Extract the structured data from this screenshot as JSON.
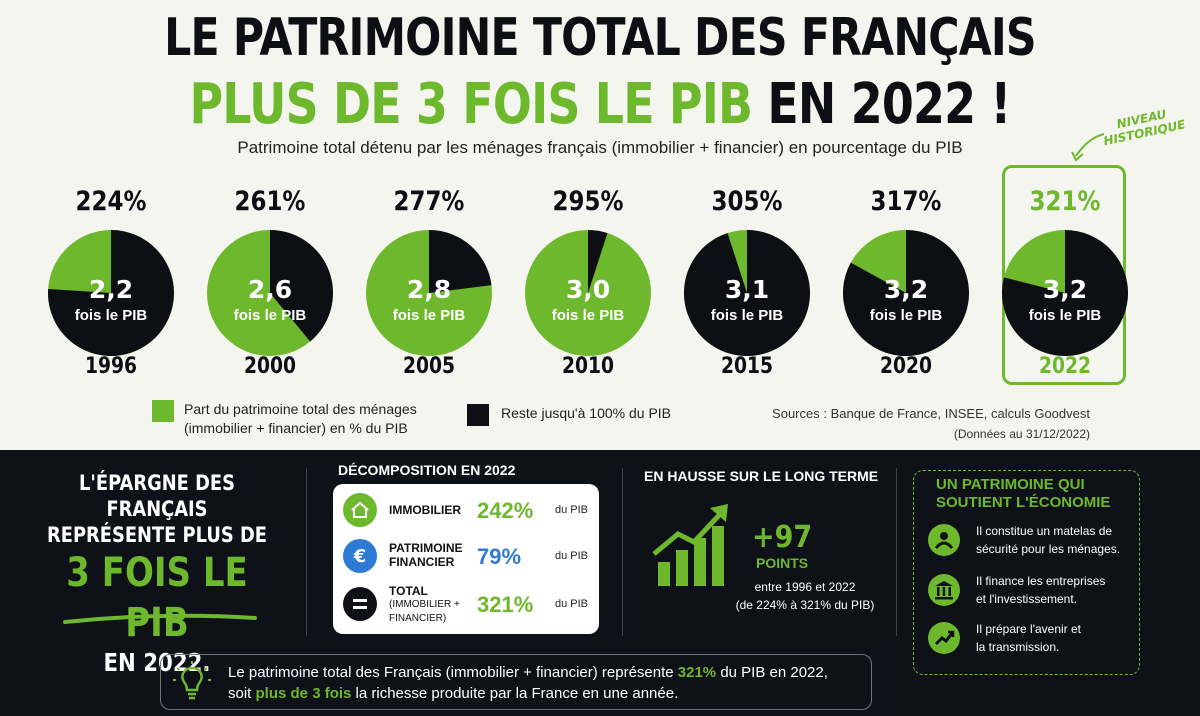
{
  "header": {
    "title_line1": "LE PATRIMOINE TOTAL DES FRANÇAIS",
    "title_line2_green": "PLUS DE 3 FOIS LE PIB",
    "title_line2_dark": " EN 2022 !",
    "subtitle": "Patrimoine total détenu par les ménages français (immobilier + financier) en pourcentage du PIB",
    "annotation_line1": "NIVEAU",
    "annotation_line2": "HISTORIQUE"
  },
  "chart_data": {
    "type": "pie",
    "unit_caption": "fois le PIB",
    "items": [
      {
        "year": "1996",
        "percent_label": "224%",
        "times_label": "2,2",
        "value": 224
      },
      {
        "year": "2000",
        "percent_label": "261%",
        "times_label": "2,6",
        "value": 261
      },
      {
        "year": "2005",
        "percent_label": "277%",
        "times_label": "2,8",
        "value": 277
      },
      {
        "year": "2010",
        "percent_label": "295%",
        "times_label": "3,0",
        "value": 295
      },
      {
        "year": "2015",
        "percent_label": "305%",
        "times_label": "3,1",
        "value": 305
      },
      {
        "year": "2020",
        "percent_label": "317%",
        "times_label": "3,2",
        "value": 317
      },
      {
        "year": "2022",
        "percent_label": "321%",
        "times_label": "3,2",
        "value": 321
      }
    ],
    "highlight_index": 6
  },
  "colors": {
    "green": "#6db82c",
    "dark": "#0d0f14",
    "blue": "#2e7bd6"
  },
  "legend": {
    "green_line1": "Part du patrimoine total des ménages",
    "green_line2": "(immobilier + financier) en % du PIB",
    "dark": "Reste jusqu'à 100% du PIB"
  },
  "sources": {
    "line1": "Sources : Banque de France, INSEE, calculs Goodvest",
    "line2": "(Données au 31/12/2022)"
  },
  "epargne": {
    "line1": "L'ÉPARGNE DES FRANÇAIS",
    "line2": "REPRÉSENTE PLUS DE",
    "big": "3 FOIS LE PIB",
    "year": "EN 2022."
  },
  "decomposition": {
    "title": "DÉCOMPOSITION EN 2022",
    "rows": [
      {
        "label1": "IMMOBILIER",
        "label2": "",
        "label3": "",
        "value": "242%",
        "unit": "du PIB",
        "icon": "house-icon",
        "color": "#6db82c"
      },
      {
        "label1": "PATRIMOINE",
        "label2": "FINANCIER",
        "label3": "",
        "value": "79%",
        "unit": "du PIB",
        "icon": "euro-icon",
        "color": "#2e7bd6"
      },
      {
        "label1": "TOTAL",
        "label2": "(IMMOBILIER +",
        "label3": "FINANCIER)",
        "value": "321%",
        "unit": "du PIB",
        "icon": "equals-icon",
        "color": "#6db82c"
      }
    ]
  },
  "hausse": {
    "title": "EN HAUSSE SUR LE LONG TERME",
    "value": "+97",
    "points": "POINTS",
    "desc1": "entre 1996 et 2022",
    "desc2": "(de 224% à 321% du PIB)"
  },
  "soutient": {
    "title1": "UN PATRIMOINE QUI",
    "title2": "SOUTIENT L'ÉCONOMIE",
    "items": [
      {
        "line1": "Il constitue un matelas de",
        "line2": "sécurité pour les ménages.",
        "icon": "people-shield-icon"
      },
      {
        "line1": "Il finance les entreprises",
        "line2": "et l'investissement.",
        "icon": "bank-icon"
      },
      {
        "line1": "Il prépare l'avenir et",
        "line2": "la transmission.",
        "icon": "growth-icon"
      }
    ]
  },
  "info": {
    "t1": "Le patrimoine total des Français (immobilier + financier) représente ",
    "t2": "321%",
    "t3": " du PIB en 2022,",
    "t4": "soit ",
    "t5": "plus de 3 fois",
    "t6": " la richesse produite par la France en une année."
  }
}
